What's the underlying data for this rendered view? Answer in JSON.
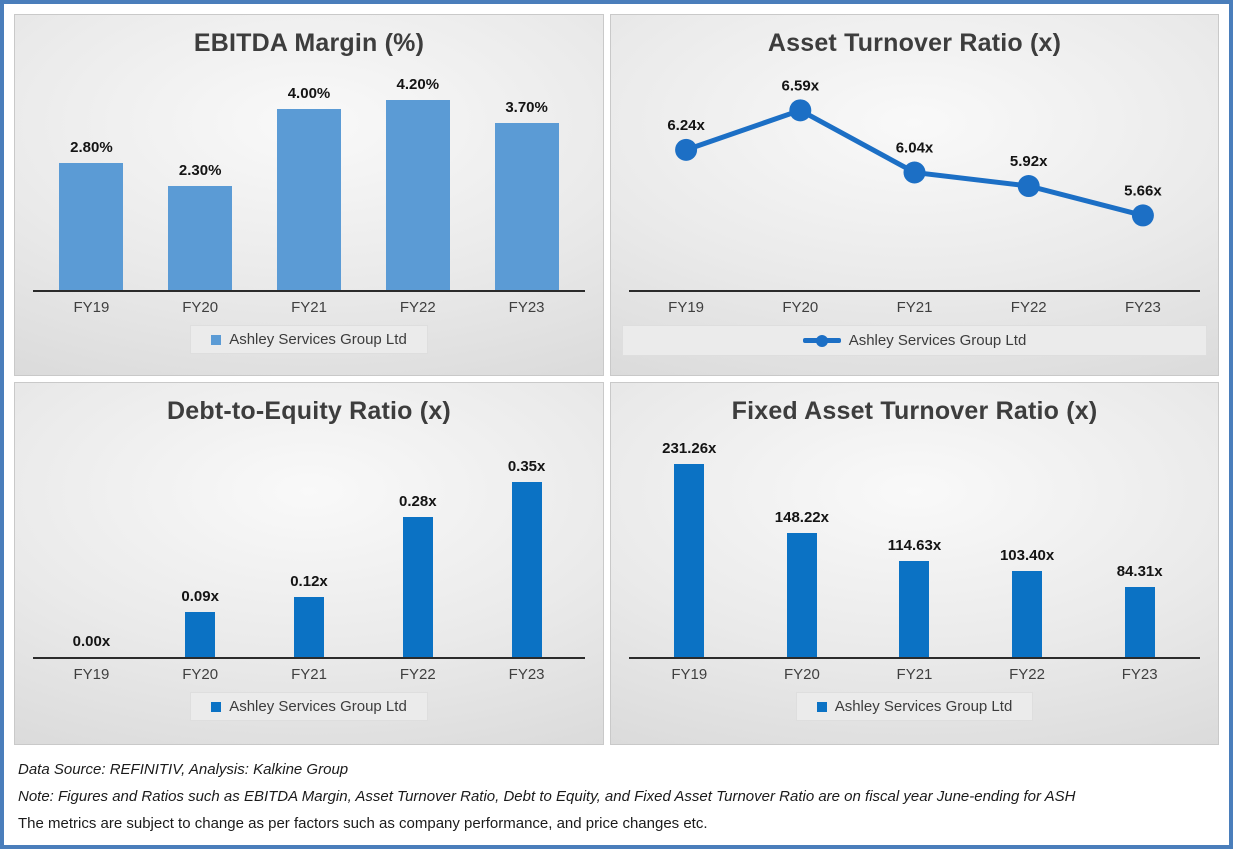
{
  "frame": {
    "border_color": "#4a7ebb"
  },
  "legend_label": "Ashley Services Group Ltd",
  "chart_data": [
    {
      "type": "bar",
      "title": "EBITDA Margin (%)",
      "categories": [
        "FY19",
        "FY20",
        "FY21",
        "FY22",
        "FY23"
      ],
      "values": [
        2.8,
        2.3,
        4.0,
        4.2,
        3.7
      ],
      "labels": [
        "2.80%",
        "2.30%",
        "4.00%",
        "4.20%",
        "3.70%"
      ],
      "ylim": [
        0,
        5
      ],
      "grid": false,
      "legend": "Ashley Services Group Ltd",
      "legend_position": "bottom",
      "color": "#5b9bd5"
    },
    {
      "type": "line",
      "title": "Asset Turnover Ratio (x)",
      "categories": [
        "FY19",
        "FY20",
        "FY21",
        "FY22",
        "FY23"
      ],
      "values": [
        6.24,
        6.59,
        6.04,
        5.92,
        5.66
      ],
      "labels": [
        "6.24x",
        "6.59x",
        "6.04x",
        "5.92x",
        "5.66x"
      ],
      "ylim": [
        5,
        7
      ],
      "grid": false,
      "legend": "Ashley Services Group Ltd",
      "legend_position": "bottom",
      "color": "#1c6fc5"
    },
    {
      "type": "bar",
      "title": "Debt-to-Equity Ratio (x)",
      "categories": [
        "FY19",
        "FY20",
        "FY21",
        "FY22",
        "FY23"
      ],
      "values": [
        0.0,
        0.09,
        0.12,
        0.28,
        0.35
      ],
      "labels": [
        "0.00x",
        "0.09x",
        "0.12x",
        "0.28x",
        "0.35x"
      ],
      "ylim": [
        0,
        0.45
      ],
      "grid": false,
      "legend": "Ashley Services Group Ltd",
      "legend_position": "bottom",
      "color": "#0b72c4"
    },
    {
      "type": "bar",
      "title": "Fixed Asset Turnover Ratio (x)",
      "categories": [
        "FY19",
        "FY20",
        "FY21",
        "FY22",
        "FY23"
      ],
      "values": [
        231.26,
        148.22,
        114.63,
        103.4,
        84.31
      ],
      "labels": [
        "231.26x",
        "148.22x",
        "114.63x",
        "103.40x",
        "84.31x"
      ],
      "ylim": [
        0,
        270
      ],
      "grid": false,
      "legend": "Ashley Services Group Ltd",
      "legend_position": "bottom",
      "color": "#0b72c4"
    }
  ],
  "footer": {
    "lines": [
      "Data Source: REFINITIV, Analysis: Kalkine Group",
      "Note: Figures and Ratios such as EBITDA Margin, Asset Turnover Ratio, Debt to Equity, and Fixed Asset Turnover Ratio are on fiscal year June-ending for ASH",
      "The metrics are subject to change as per factors such as company performance, and price changes etc."
    ]
  }
}
